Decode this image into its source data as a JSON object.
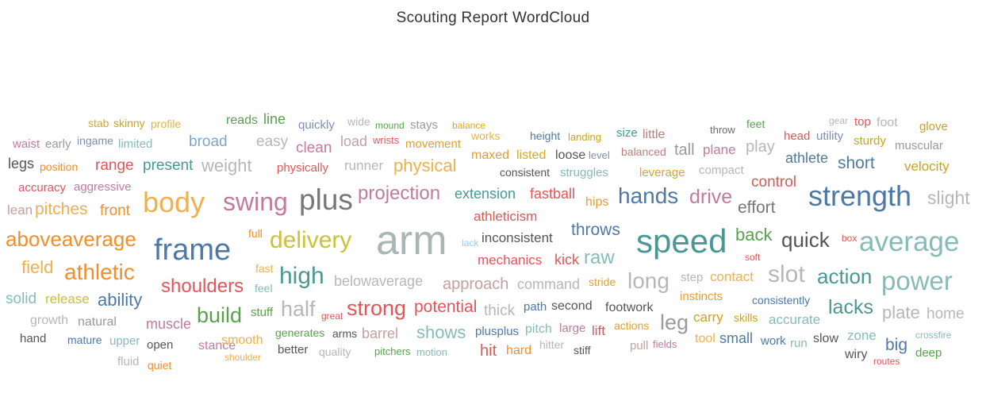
{
  "chart_data": {
    "type": "wordcloud",
    "title": "Scouting Report WordCloud",
    "words": [
      {
        "text": "stab",
        "weight": 14,
        "color": "#d4a92a"
      },
      {
        "text": "skinny",
        "weight": 14,
        "color": "#c9a227"
      },
      {
        "text": "profile",
        "weight": 14,
        "color": "#e0b64a"
      },
      {
        "text": "reads",
        "weight": 16,
        "color": "#59a14f"
      },
      {
        "text": "line",
        "weight": 18,
        "color": "#59a14f"
      },
      {
        "text": "quickly",
        "weight": 15,
        "color": "#7b8fb8"
      },
      {
        "text": "wide",
        "weight": 14,
        "color": "#b7b7b7"
      },
      {
        "text": "mound",
        "weight": 12,
        "color": "#59a14f"
      },
      {
        "text": "stays",
        "weight": 15,
        "color": "#9a9a9a"
      },
      {
        "text": "balance",
        "weight": 12,
        "color": "#d4a92a"
      },
      {
        "text": "size",
        "weight": 15,
        "color": "#499894"
      },
      {
        "text": "little",
        "weight": 16,
        "color": "#c27c7c"
      },
      {
        "text": "throw",
        "weight": 13,
        "color": "#6b6b6b"
      },
      {
        "text": "feet",
        "weight": 14,
        "color": "#59a14f"
      },
      {
        "text": "gear",
        "weight": 12,
        "color": "#b7b7b7"
      },
      {
        "text": "top",
        "weight": 15,
        "color": "#e15759"
      },
      {
        "text": "foot",
        "weight": 16,
        "color": "#b7b7b7"
      },
      {
        "text": "glove",
        "weight": 15,
        "color": "#c9a227"
      },
      {
        "text": "waist",
        "weight": 15,
        "color": "#c27c9a"
      },
      {
        "text": "early",
        "weight": 15,
        "color": "#9a9a9a"
      },
      {
        "text": "ingame",
        "weight": 14,
        "color": "#7b8fb8"
      },
      {
        "text": "limited",
        "weight": 15,
        "color": "#86bcb6"
      },
      {
        "text": "broad",
        "weight": 19,
        "color": "#7fa5c8"
      },
      {
        "text": "easy",
        "weight": 19,
        "color": "#b7b7b7"
      },
      {
        "text": "clean",
        "weight": 19,
        "color": "#c27c9a"
      },
      {
        "text": "load",
        "weight": 18,
        "color": "#c4a0a0"
      },
      {
        "text": "wrists",
        "weight": 13,
        "color": "#e15759"
      },
      {
        "text": "movement",
        "weight": 15,
        "color": "#e0a03a"
      },
      {
        "text": "works",
        "weight": 14,
        "color": "#e0b64a"
      },
      {
        "text": "height",
        "weight": 14,
        "color": "#4e79a7"
      },
      {
        "text": "landing",
        "weight": 13,
        "color": "#c9a227"
      },
      {
        "text": "balanced",
        "weight": 14,
        "color": "#c27c7c"
      },
      {
        "text": "tall",
        "weight": 20,
        "color": "#9a9a9a"
      },
      {
        "text": "plane",
        "weight": 17,
        "color": "#c27c9a"
      },
      {
        "text": "play",
        "weight": 20,
        "color": "#b7b7b7"
      },
      {
        "text": "head",
        "weight": 15,
        "color": "#e15759"
      },
      {
        "text": "utility",
        "weight": 15,
        "color": "#7b8fb8"
      },
      {
        "text": "sturdy",
        "weight": 15,
        "color": "#c9a227"
      },
      {
        "text": "muscular",
        "weight": 15,
        "color": "#9a9a9a"
      },
      {
        "text": "legs",
        "weight": 18,
        "color": "#555555"
      },
      {
        "text": "position",
        "weight": 14,
        "color": "#f28e2b"
      },
      {
        "text": "range",
        "weight": 19,
        "color": "#e15759"
      },
      {
        "text": "present",
        "weight": 19,
        "color": "#499894"
      },
      {
        "text": "weight",
        "weight": 22,
        "color": "#b7b7b7"
      },
      {
        "text": "physically",
        "weight": 15,
        "color": "#e15759"
      },
      {
        "text": "runner",
        "weight": 17,
        "color": "#b7b7b7"
      },
      {
        "text": "physical",
        "weight": 22,
        "color": "#f1b04c"
      },
      {
        "text": "maxed",
        "weight": 16,
        "color": "#e0a03a"
      },
      {
        "text": "listed",
        "weight": 16,
        "color": "#d4a92a"
      },
      {
        "text": "loose",
        "weight": 16,
        "color": "#555555"
      },
      {
        "text": "level",
        "weight": 13,
        "color": "#7b8fb8"
      },
      {
        "text": "consistent",
        "weight": 14,
        "color": "#555555"
      },
      {
        "text": "struggles",
        "weight": 15,
        "color": "#86bcb6"
      },
      {
        "text": "leverage",
        "weight": 15,
        "color": "#e0a03a"
      },
      {
        "text": "compact",
        "weight": 15,
        "color": "#b7b7b7"
      },
      {
        "text": "athlete",
        "weight": 18,
        "color": "#4e79a7"
      },
      {
        "text": "short",
        "weight": 21,
        "color": "#4e79a7"
      },
      {
        "text": "velocity",
        "weight": 17,
        "color": "#c9a227"
      },
      {
        "text": "accuracy",
        "weight": 15,
        "color": "#e15759"
      },
      {
        "text": "aggressive",
        "weight": 15,
        "color": "#c27c9a"
      },
      {
        "text": "control",
        "weight": 19,
        "color": "#e15759"
      },
      {
        "text": "lean",
        "weight": 17,
        "color": "#c4a0a0"
      },
      {
        "text": "pitches",
        "weight": 21,
        "color": "#f1b04c"
      },
      {
        "text": "front",
        "weight": 19,
        "color": "#f28e2b"
      },
      {
        "text": "body",
        "weight": 36,
        "color": "#f1b04c"
      },
      {
        "text": "swing",
        "weight": 32,
        "color": "#c27c9a"
      },
      {
        "text": "plus",
        "weight": 37,
        "color": "#777777"
      },
      {
        "text": "projection",
        "weight": 24,
        "color": "#c27c9a"
      },
      {
        "text": "extension",
        "weight": 18,
        "color": "#499894"
      },
      {
        "text": "fastball",
        "weight": 18,
        "color": "#e15759"
      },
      {
        "text": "hips",
        "weight": 16,
        "color": "#e0a03a"
      },
      {
        "text": "hands",
        "weight": 28,
        "color": "#4e79a7"
      },
      {
        "text": "drive",
        "weight": 25,
        "color": "#c27c9a"
      },
      {
        "text": "effort",
        "weight": 21,
        "color": "#777777"
      },
      {
        "text": "strength",
        "weight": 36,
        "color": "#4e79a7"
      },
      {
        "text": "slight",
        "weight": 23,
        "color": "#b7b7b7"
      },
      {
        "text": "athleticism",
        "weight": 17,
        "color": "#e15759"
      },
      {
        "text": "aboveaverage",
        "weight": 26,
        "color": "#f28e2b"
      },
      {
        "text": "frame",
        "weight": 38,
        "color": "#4e79a7"
      },
      {
        "text": "full",
        "weight": 14,
        "color": "#f28e2b"
      },
      {
        "text": "delivery",
        "weight": 30,
        "color": "#c9c23a"
      },
      {
        "text": "arm",
        "weight": 52,
        "color": "#aab5b5"
      },
      {
        "text": "lack",
        "weight": 12,
        "color": "#a0cbe8"
      },
      {
        "text": "inconsistent",
        "weight": 17,
        "color": "#555555"
      },
      {
        "text": "throws",
        "weight": 21,
        "color": "#4e79a7"
      },
      {
        "text": "speed",
        "weight": 42,
        "color": "#499894"
      },
      {
        "text": "back",
        "weight": 22,
        "color": "#59a14f"
      },
      {
        "text": "quick",
        "weight": 26,
        "color": "#555555"
      },
      {
        "text": "box",
        "weight": 12,
        "color": "#e15759"
      },
      {
        "text": "average",
        "weight": 35,
        "color": "#86bcb6"
      },
      {
        "text": "field",
        "weight": 22,
        "color": "#f1b04c"
      },
      {
        "text": "athletic",
        "weight": 28,
        "color": "#f28e2b"
      },
      {
        "text": "fast",
        "weight": 14,
        "color": "#f1b04c"
      },
      {
        "text": "high",
        "weight": 30,
        "color": "#499894"
      },
      {
        "text": "mechanics",
        "weight": 17,
        "color": "#e15759"
      },
      {
        "text": "kick",
        "weight": 18,
        "color": "#e15759"
      },
      {
        "text": "raw",
        "weight": 24,
        "color": "#86bcb6"
      },
      {
        "text": "soft",
        "weight": 12,
        "color": "#e15759"
      },
      {
        "text": "slot",
        "weight": 30,
        "color": "#b7b7b7"
      },
      {
        "text": "action",
        "weight": 26,
        "color": "#499894"
      },
      {
        "text": "power",
        "weight": 33,
        "color": "#86bcb6"
      },
      {
        "text": "shoulders",
        "weight": 24,
        "color": "#e15759"
      },
      {
        "text": "feel",
        "weight": 14,
        "color": "#86bcb6"
      },
      {
        "text": "belowaverage",
        "weight": 18,
        "color": "#b7b7b7"
      },
      {
        "text": "approach",
        "weight": 20,
        "color": "#c4a0a0"
      },
      {
        "text": "command",
        "weight": 18,
        "color": "#b7b7b7"
      },
      {
        "text": "stride",
        "weight": 14,
        "color": "#e0a03a"
      },
      {
        "text": "long",
        "weight": 28,
        "color": "#b7b7b7"
      },
      {
        "text": "step",
        "weight": 15,
        "color": "#b7b7b7"
      },
      {
        "text": "contact",
        "weight": 17,
        "color": "#f1b04c"
      },
      {
        "text": "solid",
        "weight": 19,
        "color": "#86bcb6"
      },
      {
        "text": "release",
        "weight": 17,
        "color": "#c9c23a"
      },
      {
        "text": "ability",
        "weight": 22,
        "color": "#4e79a7"
      },
      {
        "text": "half",
        "weight": 27,
        "color": "#b7b7b7"
      },
      {
        "text": "strong",
        "weight": 27,
        "color": "#e15759"
      },
      {
        "text": "potential",
        "weight": 21,
        "color": "#e15759"
      },
      {
        "text": "thick",
        "weight": 19,
        "color": "#b7b7b7"
      },
      {
        "text": "path",
        "weight": 15,
        "color": "#4e79a7"
      },
      {
        "text": "second",
        "weight": 16,
        "color": "#555555"
      },
      {
        "text": "footwork",
        "weight": 16,
        "color": "#555555"
      },
      {
        "text": "instincts",
        "weight": 15,
        "color": "#e0a03a"
      },
      {
        "text": "consistently",
        "weight": 14,
        "color": "#4e79a7"
      },
      {
        "text": "lacks",
        "weight": 25,
        "color": "#499894"
      },
      {
        "text": "plate",
        "weight": 22,
        "color": "#b7b7b7"
      },
      {
        "text": "home",
        "weight": 19,
        "color": "#b7b7b7"
      },
      {
        "text": "build",
        "weight": 27,
        "color": "#59a14f"
      },
      {
        "text": "stuff",
        "weight": 15,
        "color": "#59a14f"
      },
      {
        "text": "great",
        "weight": 12,
        "color": "#e15759"
      },
      {
        "text": "growth",
        "weight": 16,
        "color": "#b7b7b7"
      },
      {
        "text": "natural",
        "weight": 16,
        "color": "#9a9a9a"
      },
      {
        "text": "muscle",
        "weight": 18,
        "color": "#c27c9a"
      },
      {
        "text": "leg",
        "weight": 27,
        "color": "#9a9a9a"
      },
      {
        "text": "carry",
        "weight": 17,
        "color": "#c9a227"
      },
      {
        "text": "skills",
        "weight": 14,
        "color": "#c9a227"
      },
      {
        "text": "accurate",
        "weight": 17,
        "color": "#86bcb6"
      },
      {
        "text": "generates",
        "weight": 14,
        "color": "#59a14f"
      },
      {
        "text": "arms",
        "weight": 14,
        "color": "#555555"
      },
      {
        "text": "barrel",
        "weight": 18,
        "color": "#c4a0a0"
      },
      {
        "text": "shows",
        "weight": 22,
        "color": "#86bcb6"
      },
      {
        "text": "plusplus",
        "weight": 15,
        "color": "#4e79a7"
      },
      {
        "text": "pitch",
        "weight": 16,
        "color": "#86bcb6"
      },
      {
        "text": "large",
        "weight": 15,
        "color": "#c27c9a"
      },
      {
        "text": "lift",
        "weight": 17,
        "color": "#e15759"
      },
      {
        "text": "actions",
        "weight": 14,
        "color": "#e0a03a"
      },
      {
        "text": "tool",
        "weight": 16,
        "color": "#f1b04c"
      },
      {
        "text": "small",
        "weight": 18,
        "color": "#4e79a7"
      },
      {
        "text": "work",
        "weight": 15,
        "color": "#4e79a7"
      },
      {
        "text": "run",
        "weight": 15,
        "color": "#86bcb6"
      },
      {
        "text": "slow",
        "weight": 16,
        "color": "#555555"
      },
      {
        "text": "zone",
        "weight": 17,
        "color": "#86bcb6"
      },
      {
        "text": "big",
        "weight": 21,
        "color": "#4e79a7"
      },
      {
        "text": "crossfire",
        "weight": 12,
        "color": "#86bcb6"
      },
      {
        "text": "hand",
        "weight": 15,
        "color": "#555555"
      },
      {
        "text": "mature",
        "weight": 14,
        "color": "#4e79a7"
      },
      {
        "text": "upper",
        "weight": 15,
        "color": "#86bcb6"
      },
      {
        "text": "open",
        "weight": 15,
        "color": "#555555"
      },
      {
        "text": "stance",
        "weight": 16,
        "color": "#c27c9a"
      },
      {
        "text": "smooth",
        "weight": 16,
        "color": "#f1b04c"
      },
      {
        "text": "better",
        "weight": 15,
        "color": "#555555"
      },
      {
        "text": "quality",
        "weight": 14,
        "color": "#b7b7b7"
      },
      {
        "text": "pitchers",
        "weight": 13,
        "color": "#59a14f"
      },
      {
        "text": "motion",
        "weight": 13,
        "color": "#86bcb6"
      },
      {
        "text": "hit",
        "weight": 20,
        "color": "#e15759"
      },
      {
        "text": "hard",
        "weight": 16,
        "color": "#f28e2b"
      },
      {
        "text": "hitter",
        "weight": 14,
        "color": "#b7b7b7"
      },
      {
        "text": "stiff",
        "weight": 14,
        "color": "#555555"
      },
      {
        "text": "pull",
        "weight": 15,
        "color": "#c4a0a0"
      },
      {
        "text": "fields",
        "weight": 13,
        "color": "#c27c9a"
      },
      {
        "text": "wiry",
        "weight": 16,
        "color": "#555555"
      },
      {
        "text": "deep",
        "weight": 15,
        "color": "#59a14f"
      },
      {
        "text": "fluid",
        "weight": 15,
        "color": "#b7b7b7"
      },
      {
        "text": "shoulder",
        "weight": 12,
        "color": "#f1b04c"
      },
      {
        "text": "quiet",
        "weight": 14,
        "color": "#f28e2b"
      },
      {
        "text": "routes",
        "weight": 12,
        "color": "#e15759"
      }
    ]
  }
}
